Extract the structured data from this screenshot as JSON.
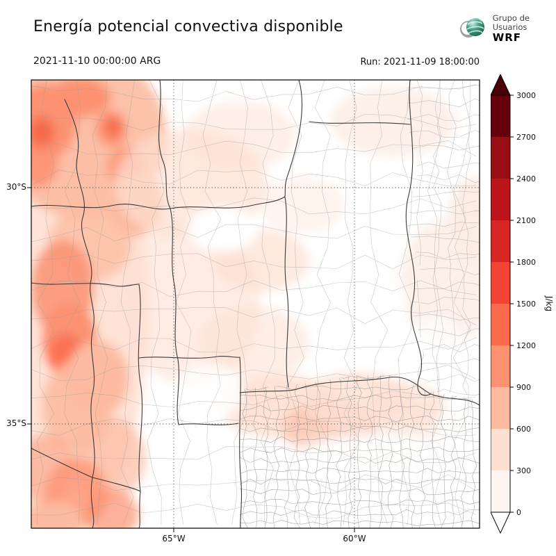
{
  "header": {
    "title": "Energía potencial convectiva disponible",
    "logo": {
      "line1": "Grupo de",
      "line2": "Usuarios",
      "line3": "WRF"
    }
  },
  "times": {
    "valid": "2021-11-10 00:00:00 ARG",
    "run": "Run: 2021-11-09 18:00:00"
  },
  "axes": {
    "y_ticks": [
      "30°S",
      "35°S"
    ],
    "x_ticks": [
      "65°W",
      "60°W"
    ]
  },
  "colorbar": {
    "label": "J/kg",
    "ticks": [
      "3000",
      "2700",
      "2400",
      "2100",
      "1800",
      "1500",
      "1200",
      "900",
      "600",
      "300",
      "0"
    ],
    "colors_top_to_bottom": [
      "#67000d",
      "#980c13",
      "#bc141a",
      "#d92523",
      "#f14432",
      "#fb6a4a",
      "#fc9272",
      "#fcbba1",
      "#fee0d2",
      "#fff5f0"
    ],
    "over_color": "#4a0007",
    "under_color": "#ffffff"
  },
  "chart_data": {
    "type": "heatmap",
    "title": "Energía potencial convectiva disponible",
    "units": "J/kg",
    "levels": [
      0,
      300,
      600,
      900,
      1200,
      1500,
      1800,
      2100,
      2400,
      2700,
      3000
    ],
    "valid_time": "2021-11-10 00:00:00 ARG",
    "run_time": "Run: 2021-11-09 18:00:00",
    "lat_ticks": [
      "30°S",
      "35°S"
    ],
    "lon_ticks": [
      "65°W",
      "60°W"
    ],
    "legend_position": "right",
    "description": "Filled-contour CAPE map over central Argentina (WRF model output). Values of roughly 600-1200 J/kg along the Andes/foothills in the west, 0-600 J/kg across the center and south-center, near 0 (white) over the southeast (Buenos Aires) and northeast."
  }
}
